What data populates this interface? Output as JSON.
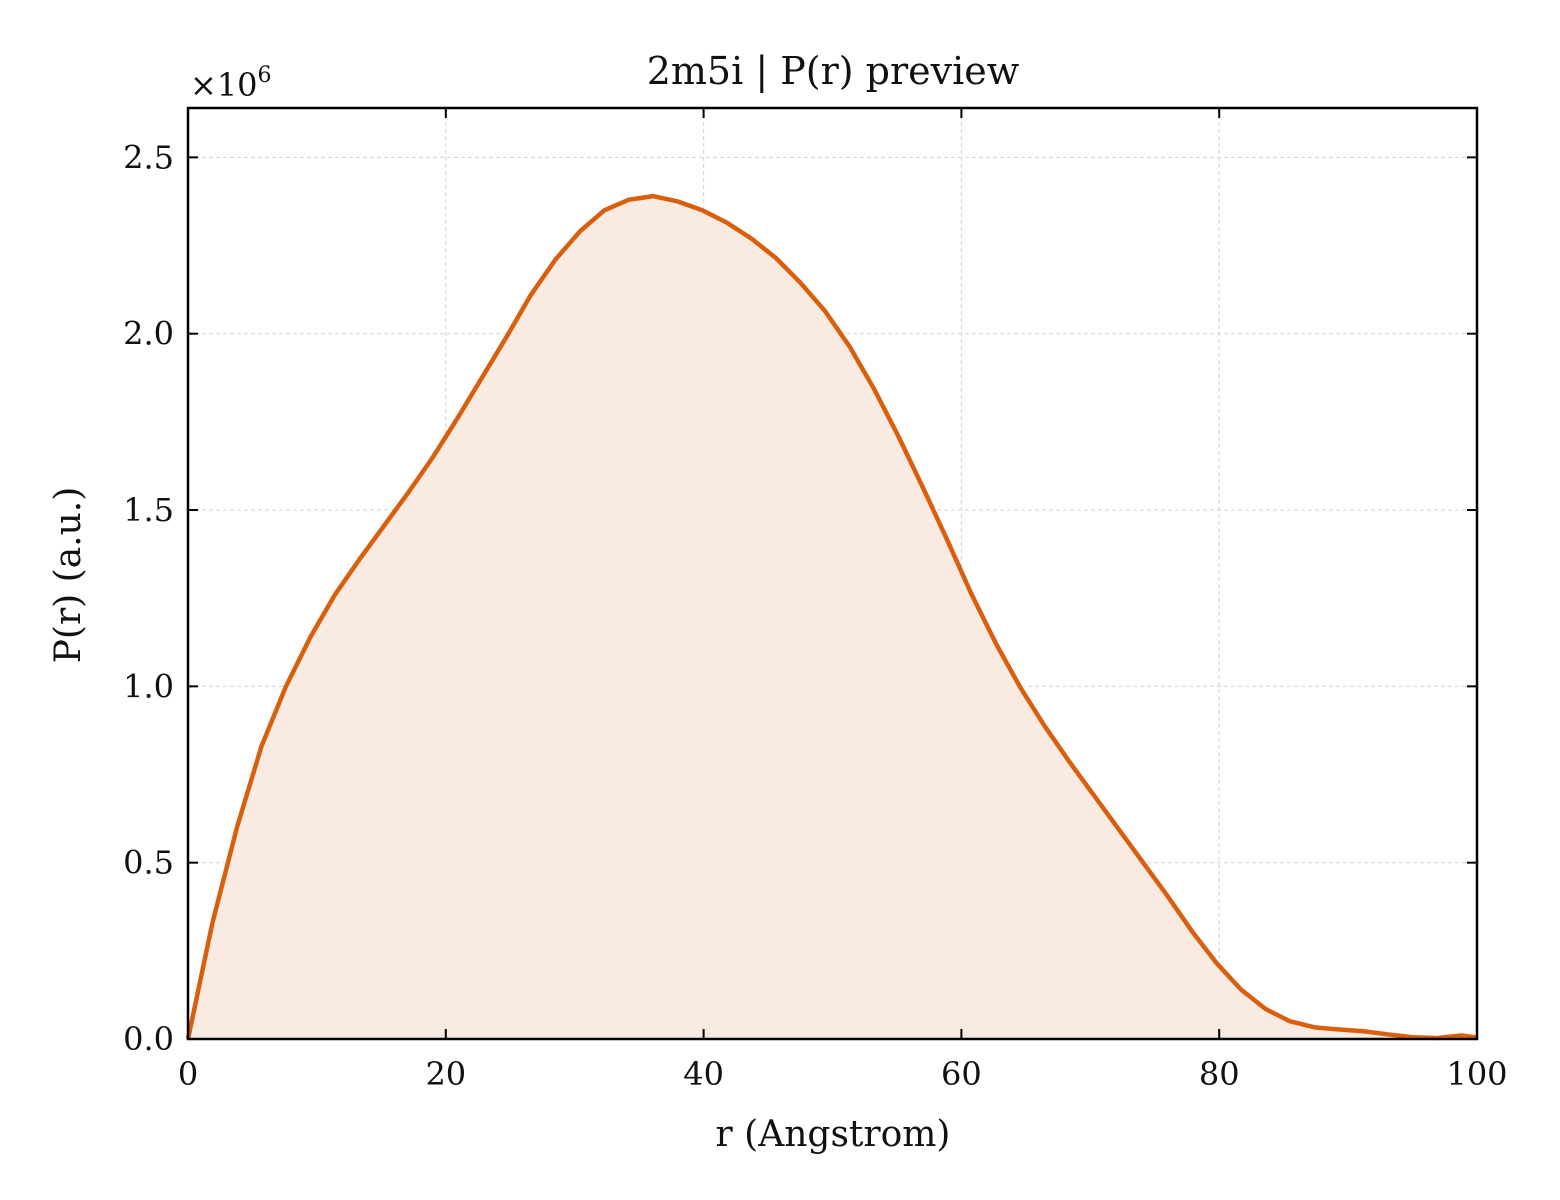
{
  "chart_data": {
    "type": "area",
    "title": "2m5i | P(r) preview",
    "xlabel": "r (Angstrom)",
    "ylabel": "P(r) (a.u.)",
    "y_scale_label": "×10",
    "y_scale_exponent": "6",
    "xlim": [
      0,
      100
    ],
    "ylim": [
      0,
      2.64
    ],
    "x_ticks": [
      0,
      20,
      40,
      60,
      80,
      100
    ],
    "x_tick_labels": [
      "0",
      "20",
      "40",
      "60",
      "80",
      "100"
    ],
    "y_ticks": [
      0,
      0.5,
      1.0,
      1.5,
      2.0,
      2.5
    ],
    "y_tick_labels": [
      "0.0",
      "0.5",
      "1.0",
      "1.5",
      "2.0",
      "2.5"
    ],
    "grid": true,
    "colors": {
      "line": "#d95f0e",
      "fill": "#f9ebe1",
      "grid": "#d9d9d9"
    },
    "series": [
      {
        "x": [
          0,
          1.9,
          3.8,
          5.7,
          7.6,
          9.5,
          11.4,
          13.3,
          15.2,
          17.1,
          19.0,
          20.9,
          22.8,
          24.7,
          26.6,
          28.5,
          30.4,
          32.3,
          34.2,
          36.1,
          38.0,
          39.9,
          41.8,
          43.7,
          45.6,
          47.5,
          49.4,
          51.3,
          53.2,
          55.1,
          57.0,
          58.9,
          60.8,
          62.7,
          64.6,
          66.5,
          68.4,
          70.3,
          72.2,
          74.1,
          76.0,
          77.9,
          79.8,
          81.7,
          83.6,
          85.5,
          87.4,
          89.3,
          91.2,
          93.1,
          95.0,
          96.9,
          98.8,
          100
        ],
        "y": [
          0.0,
          0.33,
          0.6,
          0.83,
          1.0,
          1.14,
          1.26,
          1.36,
          1.455,
          1.55,
          1.65,
          1.76,
          1.875,
          1.99,
          2.11,
          2.21,
          2.29,
          2.35,
          2.38,
          2.39,
          2.375,
          2.35,
          2.315,
          2.27,
          2.215,
          2.145,
          2.065,
          1.965,
          1.845,
          1.71,
          1.565,
          1.415,
          1.26,
          1.12,
          0.995,
          0.885,
          0.785,
          0.69,
          0.595,
          0.5,
          0.405,
          0.305,
          0.215,
          0.14,
          0.085,
          0.05,
          0.033,
          0.027,
          0.022,
          0.013,
          0.005,
          0.003,
          0.01,
          0.004
        ]
      }
    ]
  }
}
